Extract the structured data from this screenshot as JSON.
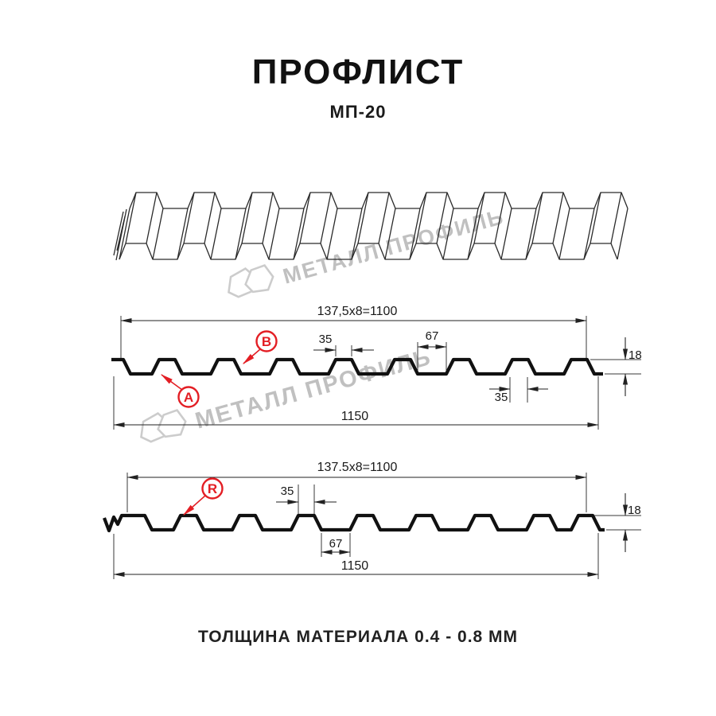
{
  "header": {
    "title": "ПРОФЛИСТ",
    "subtitle": "МП-20"
  },
  "footer": {
    "text": "ТОЛЩИНА МАТЕРИАЛА 0.4 - 0.8 ММ"
  },
  "watermark": {
    "text": "МЕТАЛЛ ПРОФИЛЬ"
  },
  "colors": {
    "label_red": "#e31e24",
    "line": "#2a2a2a",
    "watermark_gray": "#c0c0c0"
  },
  "section_top": {
    "dim_width_working": "137,5x8=1100",
    "dim_rib_top": "35",
    "dim_valley": "67",
    "dim_rib_bottom": "35",
    "dim_height": "18",
    "dim_width_total": "1150",
    "label_a": "A",
    "label_b": "B"
  },
  "section_bottom": {
    "dim_width_working": "137.5x8=1100",
    "dim_rib_top": "35",
    "dim_valley": "67",
    "dim_height": "18",
    "dim_width_total": "1150",
    "label_r": "R"
  }
}
